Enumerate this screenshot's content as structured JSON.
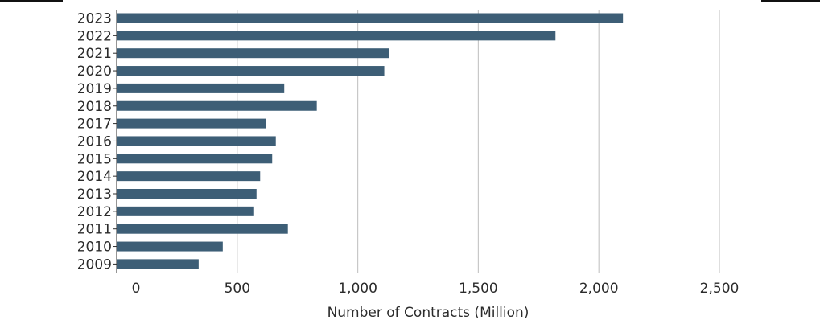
{
  "chart_data": {
    "type": "bar",
    "orientation": "horizontal",
    "categories": [
      "2023",
      "2022",
      "2021",
      "2020",
      "2019",
      "2018",
      "2017",
      "2016",
      "2015",
      "2014",
      "2013",
      "2012",
      "2011",
      "2010",
      "2009"
    ],
    "values": [
      2100,
      1820,
      1130,
      1110,
      695,
      830,
      620,
      660,
      645,
      595,
      580,
      570,
      710,
      440,
      340
    ],
    "xlabel": "Number of Contracts (Million)",
    "ylabel": "",
    "xlim": [
      0,
      2500
    ],
    "x_ticks": [
      0,
      500,
      1000,
      1500,
      2000,
      2500
    ],
    "x_tick_labels": [
      "0",
      "500",
      "1,000",
      "1,500",
      "2,000",
      "2,500"
    ],
    "grid": "vertical",
    "bar_color": "#3d5e76",
    "grid_color": "#c8c8c8"
  }
}
